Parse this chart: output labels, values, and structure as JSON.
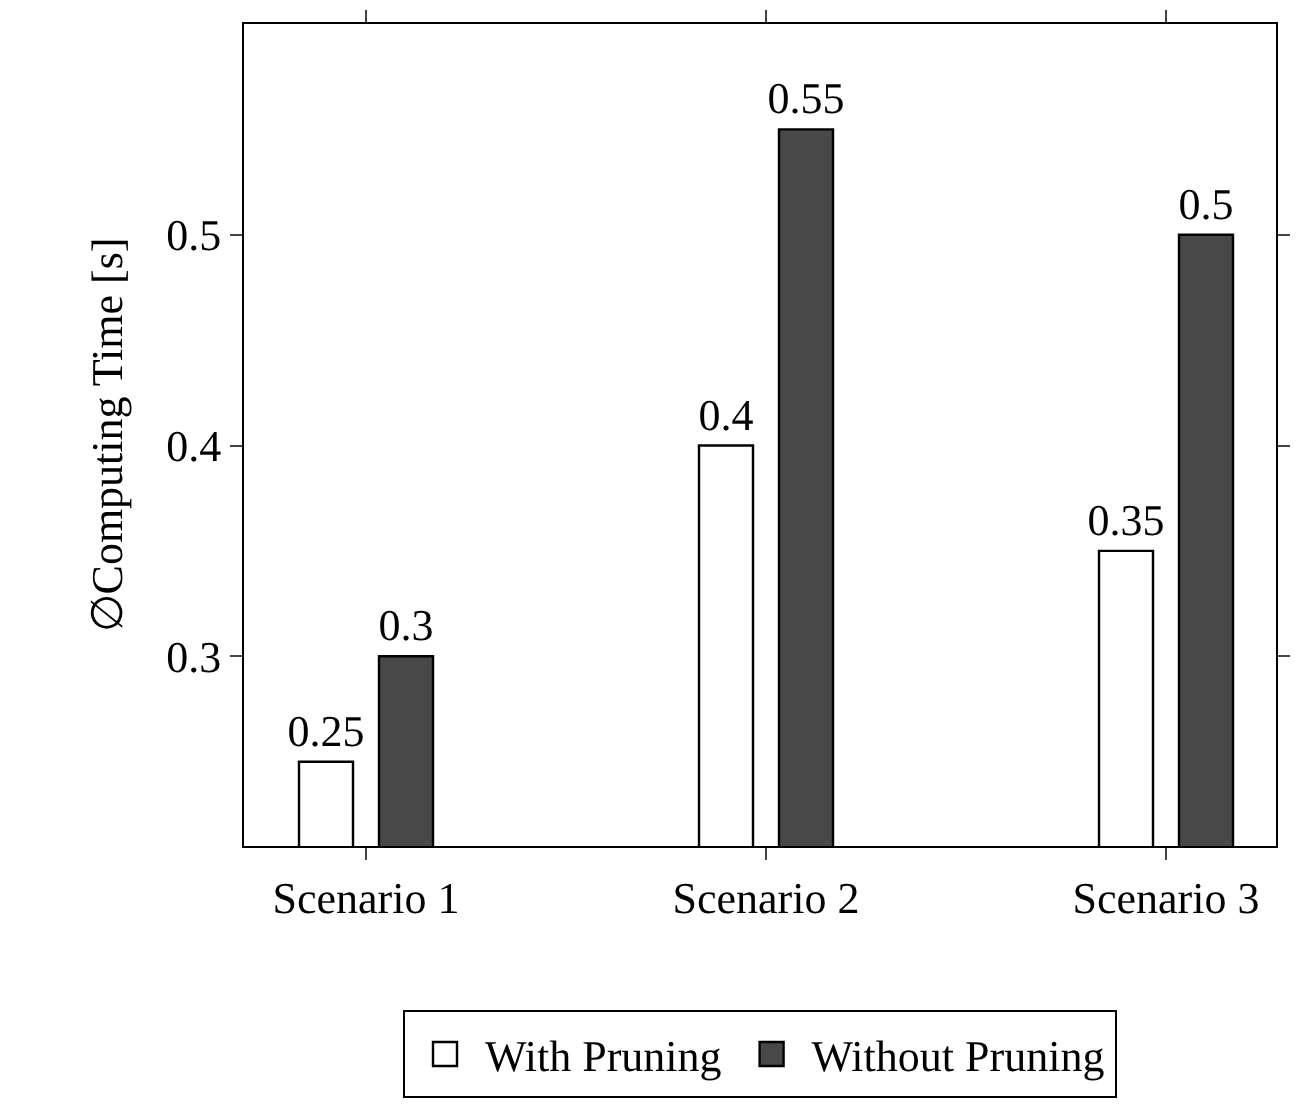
{
  "chart_data": {
    "type": "bar",
    "ylabel": "∅Computing Time [s]",
    "categories": [
      "Scenario 1",
      "Scenario 2",
      "Scenario 3"
    ],
    "series": [
      {
        "name": "With Pruning",
        "color": "#ffffff",
        "values": [
          0.25,
          0.4,
          0.35
        ]
      },
      {
        "name": "Without Pruning",
        "color": "#484848",
        "values": [
          0.3,
          0.55,
          0.5
        ]
      }
    ],
    "ylim": [
      0.21,
      0.6
    ],
    "yticks": [
      0.3,
      0.4,
      0.5
    ],
    "data_labels": true,
    "legend": "bottom"
  }
}
